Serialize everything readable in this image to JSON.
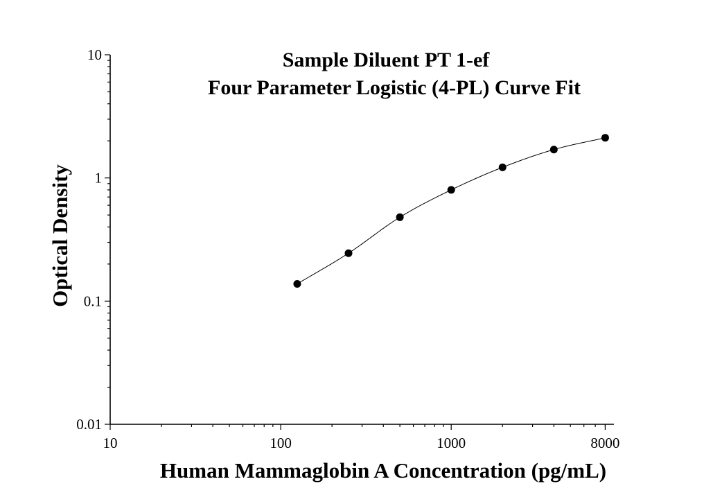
{
  "chart_data": {
    "type": "scatter",
    "title": "Sample Diluent PT 1-ef",
    "subtitle": "Four Parameter Logistic (4-PL) Curve Fit",
    "xlabel": "Human Mammaglobin A Concentration (pg/mL)",
    "ylabel": "Optical Density",
    "x_scale": "log",
    "y_scale": "log",
    "xlim": [
      10,
      9000
    ],
    "ylim": [
      0.01,
      10
    ],
    "x_ticks": [
      10,
      100,
      1000,
      8000
    ],
    "x_tick_labels": [
      "10",
      "100",
      "1000",
      "8000"
    ],
    "y_ticks": [
      0.01,
      0.1,
      1,
      10
    ],
    "y_tick_labels": [
      "0.01",
      "0.1",
      "1",
      "10"
    ],
    "grid": false,
    "points": [
      {
        "x": 125,
        "y": 0.138
      },
      {
        "x": 250,
        "y": 0.245
      },
      {
        "x": 500,
        "y": 0.48
      },
      {
        "x": 1000,
        "y": 0.8
      },
      {
        "x": 2000,
        "y": 1.22
      },
      {
        "x": 4000,
        "y": 1.7
      },
      {
        "x": 8000,
        "y": 2.12
      }
    ],
    "fit": {
      "model": "4-PL"
    }
  }
}
